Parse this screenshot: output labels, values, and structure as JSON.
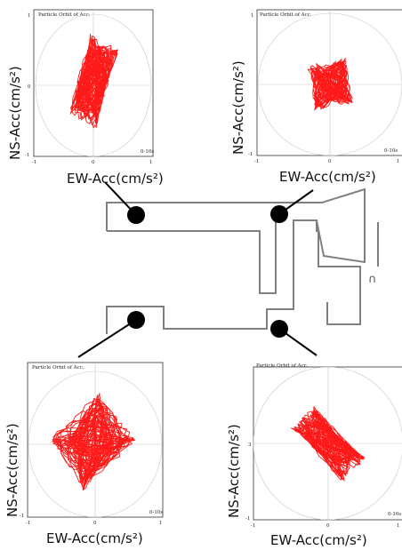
{
  "panels": [
    {
      "id": "top-left",
      "title": "Particle Orbit of Acc.",
      "xlabel": "EW-Acc(cm/s²)",
      "ylabel": "NS-Acc(cm/s²)",
      "time_label": "0-10s",
      "ticks": {
        "x_min": "-1",
        "x_mid": "0",
        "x_max": "1",
        "y_top": "1",
        "y_mid": "0",
        "y_bot": "-1"
      },
      "orbit_color": "#ff1a1a",
      "orbit": {
        "center": [
          0.0,
          0.05
        ],
        "spread": [
          0.28,
          0.62
        ],
        "tilt_deg": 70,
        "loops": 60
      }
    },
    {
      "id": "top-right",
      "title": "Particle Orbit of Acc.",
      "xlabel": "EW-Acc(cm/s²)",
      "ylabel": "NS-Acc(cm/s²)",
      "time_label": "0-10s",
      "ticks": {
        "x_min": "-1",
        "x_mid": "0",
        "x_max": "1",
        "y_top": "1",
        "y_mid": "",
        "y_bot": "-1"
      },
      "orbit_color": "#ff1a1a",
      "orbit": {
        "center": [
          0.0,
          0.0
        ],
        "spread": [
          0.33,
          0.28
        ],
        "tilt_deg": 10,
        "loops": 55
      }
    },
    {
      "id": "bottom-left",
      "title": "Particle Orbit of Acc.",
      "xlabel": "EW-Acc(cm/s²)",
      "ylabel": "NS-Acc(cm/s²)",
      "time_label": "0-10s",
      "ticks": {
        "x_min": "-1",
        "x_mid": "0",
        "x_max": "1",
        "y_top": "",
        "y_mid": "",
        "y_bot": "-1"
      },
      "orbit_color": "#ff1a1a",
      "orbit": {
        "center": [
          -0.05,
          0.05
        ],
        "spread": [
          0.55,
          0.45
        ],
        "tilt_deg": -50,
        "loops": 60
      }
    },
    {
      "id": "bottom-right",
      "title": "Particle Orbit of Acc.",
      "xlabel": "EW-Acc(cm/s²)",
      "ylabel": "NS-Acc(cm/s²)",
      "time_label": "0-10s",
      "ticks": {
        "x_min": "-1",
        "x_mid": "0",
        "x_max": "1",
        "y_top": "",
        "y_mid": "3",
        "y_bot": "-1"
      },
      "orbit_color": "#ff1a1a",
      "orbit": {
        "center": [
          0.0,
          0.0
        ],
        "spread": [
          0.52,
          0.22
        ],
        "tilt_deg": 45,
        "loops": 55
      }
    }
  ],
  "floor_plan": {
    "side_mark": "∩",
    "stroke_color": "#808080",
    "marker_color": "#000000"
  }
}
